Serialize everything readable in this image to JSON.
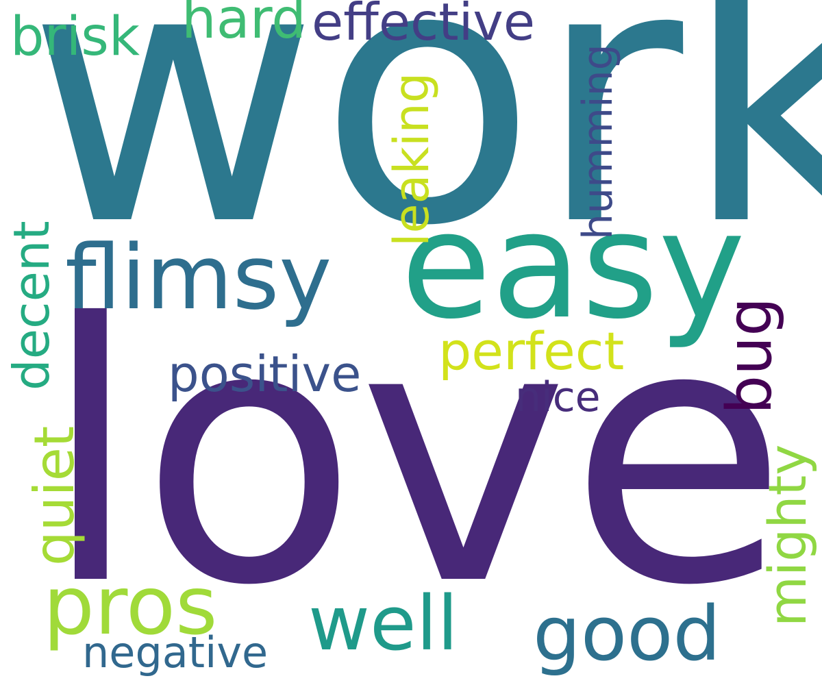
{
  "word_cloud": {
    "words": {
      "work": {
        "text": "work",
        "color": "#2C788E"
      },
      "love": {
        "text": "love",
        "color": "#482878"
      },
      "easy": {
        "text": "easy",
        "color": "#21A088"
      },
      "flimsy": {
        "text": "flimsy",
        "color": "#2E6E8E"
      },
      "effective": {
        "text": "effective",
        "color": "#433E85"
      },
      "hard": {
        "text": "hard",
        "color": "#3FBC73"
      },
      "brisk": {
        "text": "brisk",
        "color": "#35B779"
      },
      "perfect": {
        "text": "perfect",
        "color": "#D2E21B"
      },
      "positive": {
        "text": "positive",
        "color": "#3B528B"
      },
      "nice": {
        "text": "nice",
        "color": "#472D7B"
      },
      "pros": {
        "text": "pros",
        "color": "#A0DA39"
      },
      "well": {
        "text": "well",
        "color": "#1F9A8A"
      },
      "good": {
        "text": "good",
        "color": "#2D708E"
      },
      "negative": {
        "text": "negative",
        "color": "#31688E"
      },
      "leaking": {
        "text": "leaking",
        "color": "#C8E020"
      },
      "humming": {
        "text": "humming",
        "color": "#3E4A89"
      },
      "decent": {
        "text": "decent",
        "color": "#25AB82"
      },
      "quiet": {
        "text": "quiet",
        "color": "#A5DB36"
      },
      "bug": {
        "text": "bug",
        "color": "#440154"
      },
      "mighty": {
        "text": "mighty",
        "color": "#90D743"
      }
    }
  }
}
